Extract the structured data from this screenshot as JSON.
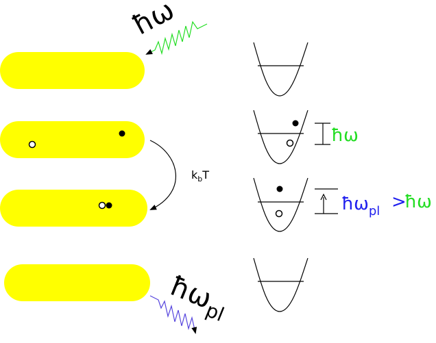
{
  "labels": {
    "photon_in": "ħω",
    "photon_out": "ħω",
    "photon_out_sub": "pl",
    "thermal_k": "k",
    "thermal_sub": "b",
    "thermal_T": "T",
    "gap_hw": "ħω",
    "gap_hwpl": "ħω",
    "gap_hwpl_sub": "pl",
    "gap_gt": ">",
    "gap_hw2": "ħω"
  },
  "colors": {
    "rod": "#ffff00",
    "green": "#22dd22",
    "blue": "#2020ee",
    "purple": "#5544dd",
    "black": "#000000"
  }
}
